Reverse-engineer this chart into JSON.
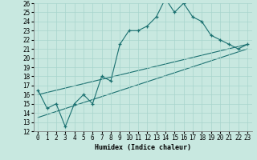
{
  "title": "",
  "xlabel": "Humidex (Indice chaleur)",
  "ylabel": "",
  "xlim": [
    -0.5,
    23.5
  ],
  "ylim": [
    12,
    26
  ],
  "yticks": [
    12,
    13,
    14,
    15,
    16,
    17,
    18,
    19,
    20,
    21,
    22,
    23,
    24,
    25,
    26
  ],
  "xticks": [
    0,
    1,
    2,
    3,
    4,
    5,
    6,
    7,
    8,
    9,
    10,
    11,
    12,
    13,
    14,
    15,
    16,
    17,
    18,
    19,
    20,
    21,
    22,
    23
  ],
  "bg_color": "#c8e8e0",
  "line_color": "#1a7070",
  "grid_color": "#a8d4cc",
  "line1_x": [
    0,
    1,
    2,
    3,
    4,
    5,
    6,
    7,
    8,
    9,
    10,
    11,
    12,
    13,
    14,
    15,
    16,
    17,
    18,
    19,
    20,
    21,
    22,
    23
  ],
  "line1_y": [
    16.5,
    14.5,
    15.0,
    12.5,
    15.0,
    16.0,
    15.0,
    18.0,
    17.5,
    21.5,
    23.0,
    23.0,
    23.5,
    24.5,
    26.5,
    25.0,
    26.0,
    24.5,
    24.0,
    22.5,
    22.0,
    21.5,
    21.0,
    21.5
  ],
  "line2_y_start": 16.0,
  "line2_y_end": 21.5,
  "line3_y_start": 13.5,
  "line3_y_end": 21.0,
  "font_size_label": 6,
  "font_size_tick": 5.5
}
